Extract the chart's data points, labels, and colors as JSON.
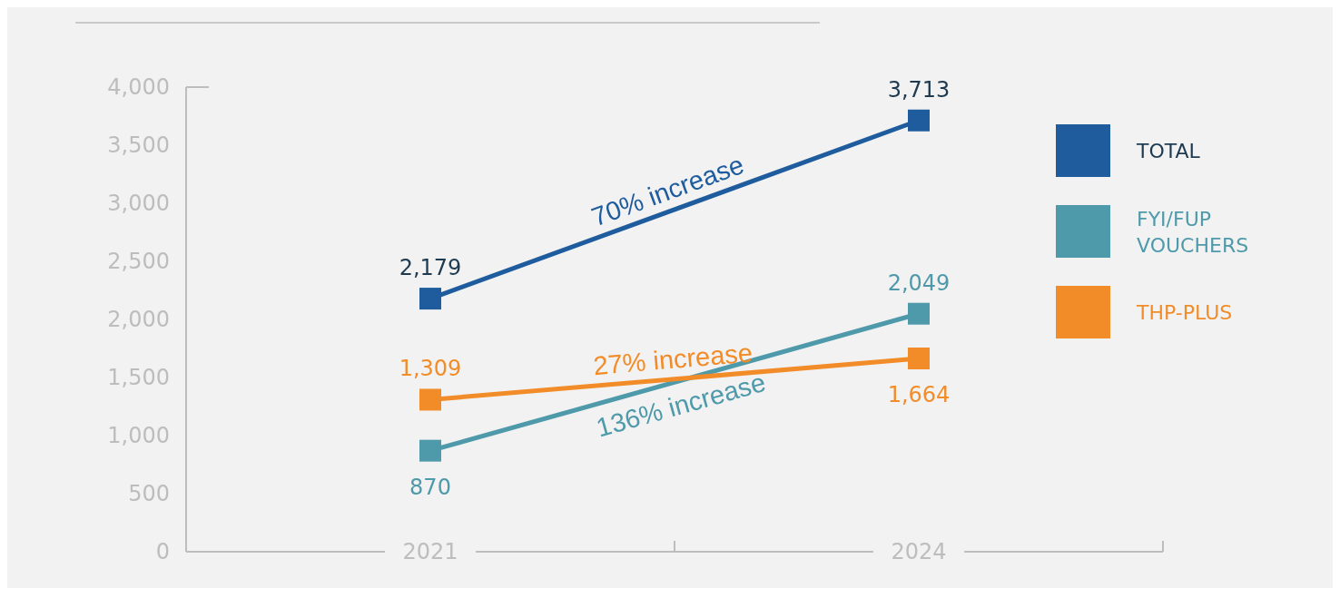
{
  "chart_data": {
    "type": "line",
    "categories": [
      "2021",
      "2024"
    ],
    "series": [
      {
        "name": "TOTAL",
        "color": "#1f5c9e",
        "values": [
          2179,
          3713
        ],
        "value_labels": [
          "2,179",
          "3,713"
        ]
      },
      {
        "name": "FYI/FUP VOUCHERS",
        "color": "#4f9aaa",
        "values": [
          870,
          2049
        ],
        "value_labels": [
          "870",
          "2,049"
        ]
      },
      {
        "name": "THP-PLUS",
        "color": "#f28c28",
        "values": [
          1309,
          1664
        ],
        "value_labels": [
          "1,309",
          "1,664"
        ]
      }
    ],
    "ylim": [
      0,
      4000
    ],
    "yticks": [
      {
        "value": 0,
        "label": "0"
      },
      {
        "value": 500,
        "label": "500"
      },
      {
        "value": 1000,
        "label": "1,000"
      },
      {
        "value": 1500,
        "label": "1,500"
      },
      {
        "value": 2000,
        "label": "2,000"
      },
      {
        "value": 2500,
        "label": "2,500"
      },
      {
        "value": 3000,
        "label": "3,000"
      },
      {
        "value": 3500,
        "label": "3,500"
      },
      {
        "value": 4000,
        "label": "4,000"
      }
    ],
    "annotations": [
      "70% increase",
      "136% increase",
      "27% increase"
    ],
    "legend": "right",
    "marker": "square",
    "line_style": "solid",
    "grid": false
  }
}
